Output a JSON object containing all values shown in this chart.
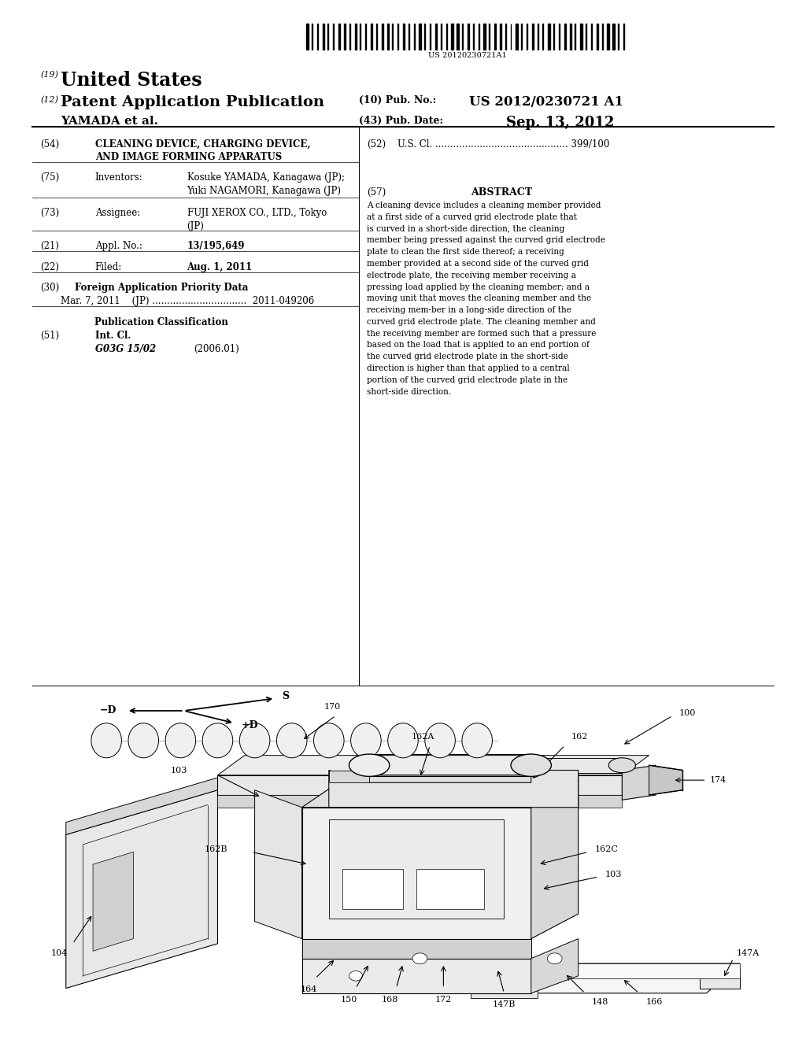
{
  "background_color": "#ffffff",
  "page_width": 10.24,
  "page_height": 13.2,
  "barcode_text": "US 20120230721A1",
  "patent_number_label": "(19)",
  "patent_title_us": "United States",
  "patent_number_label2": "(12)",
  "patent_app_pub": "Patent Application Publication",
  "pub_no_label": "(10) Pub. No.:",
  "pub_no": "US 2012/0230721 A1",
  "inventor_label": "YAMADA et al.",
  "pub_date_label": "(43) Pub. Date:",
  "pub_date": "Sep. 13, 2012",
  "section54_label": "(54)",
  "section54_title_line1": "CLEANING DEVICE, CHARGING DEVICE,",
  "section54_title_line2": "AND IMAGE FORMING APPARATUS",
  "section52_label": "(52)",
  "section52_text": "U.S. Cl. ............................................. 399/100",
  "section75_label": "(75)",
  "section75_key": "Inventors:",
  "section75_value_line1": "Kosuke YAMADA, Kanagawa (JP);",
  "section75_value_line2": "Yuki NAGAMORI, Kanagawa (JP)",
  "section57_label": "(57)",
  "abstract_title": "ABSTRACT",
  "abstract_text": "A cleaning device includes a cleaning member provided at a first side of a curved grid electrode plate that is curved in a short-side direction, the cleaning member being pressed against the curved grid electrode plate to clean the first side thereof; a receiving member provided at a second side of the curved grid electrode plate, the receiving member receiving a pressing load applied by the cleaning member; and a moving unit that moves the cleaning member and the receiving mem-ber in a long-side direction of the curved grid electrode plate. The cleaning member and the receiving member are formed such that a pressure based on the load that is applied to an end portion of the curved grid electrode plate in the short-side direction is higher than that applied to a central portion of the curved grid electrode plate in the short-side direction.",
  "section73_label": "(73)",
  "section73_key": "Assignee:",
  "section73_value_line1": "FUJI XEROX CO., LTD., Tokyo",
  "section73_value_line2": "(JP)",
  "section21_label": "(21)",
  "section21_key": "Appl. No.:",
  "section21_value": "13/195,649",
  "section22_label": "(22)",
  "section22_key": "Filed:",
  "section22_value": "Aug. 1, 2011",
  "section30_label": "(30)",
  "section30_title": "Foreign Application Priority Data",
  "section30_data": "Mar. 7, 2011    (JP) ................................  2011-049206",
  "pub_class_title": "Publication Classification",
  "section51_label": "(51)",
  "section51_key": "Int. Cl.",
  "section51_value1": "G03G 15/02",
  "section51_value2": "(2006.01)"
}
